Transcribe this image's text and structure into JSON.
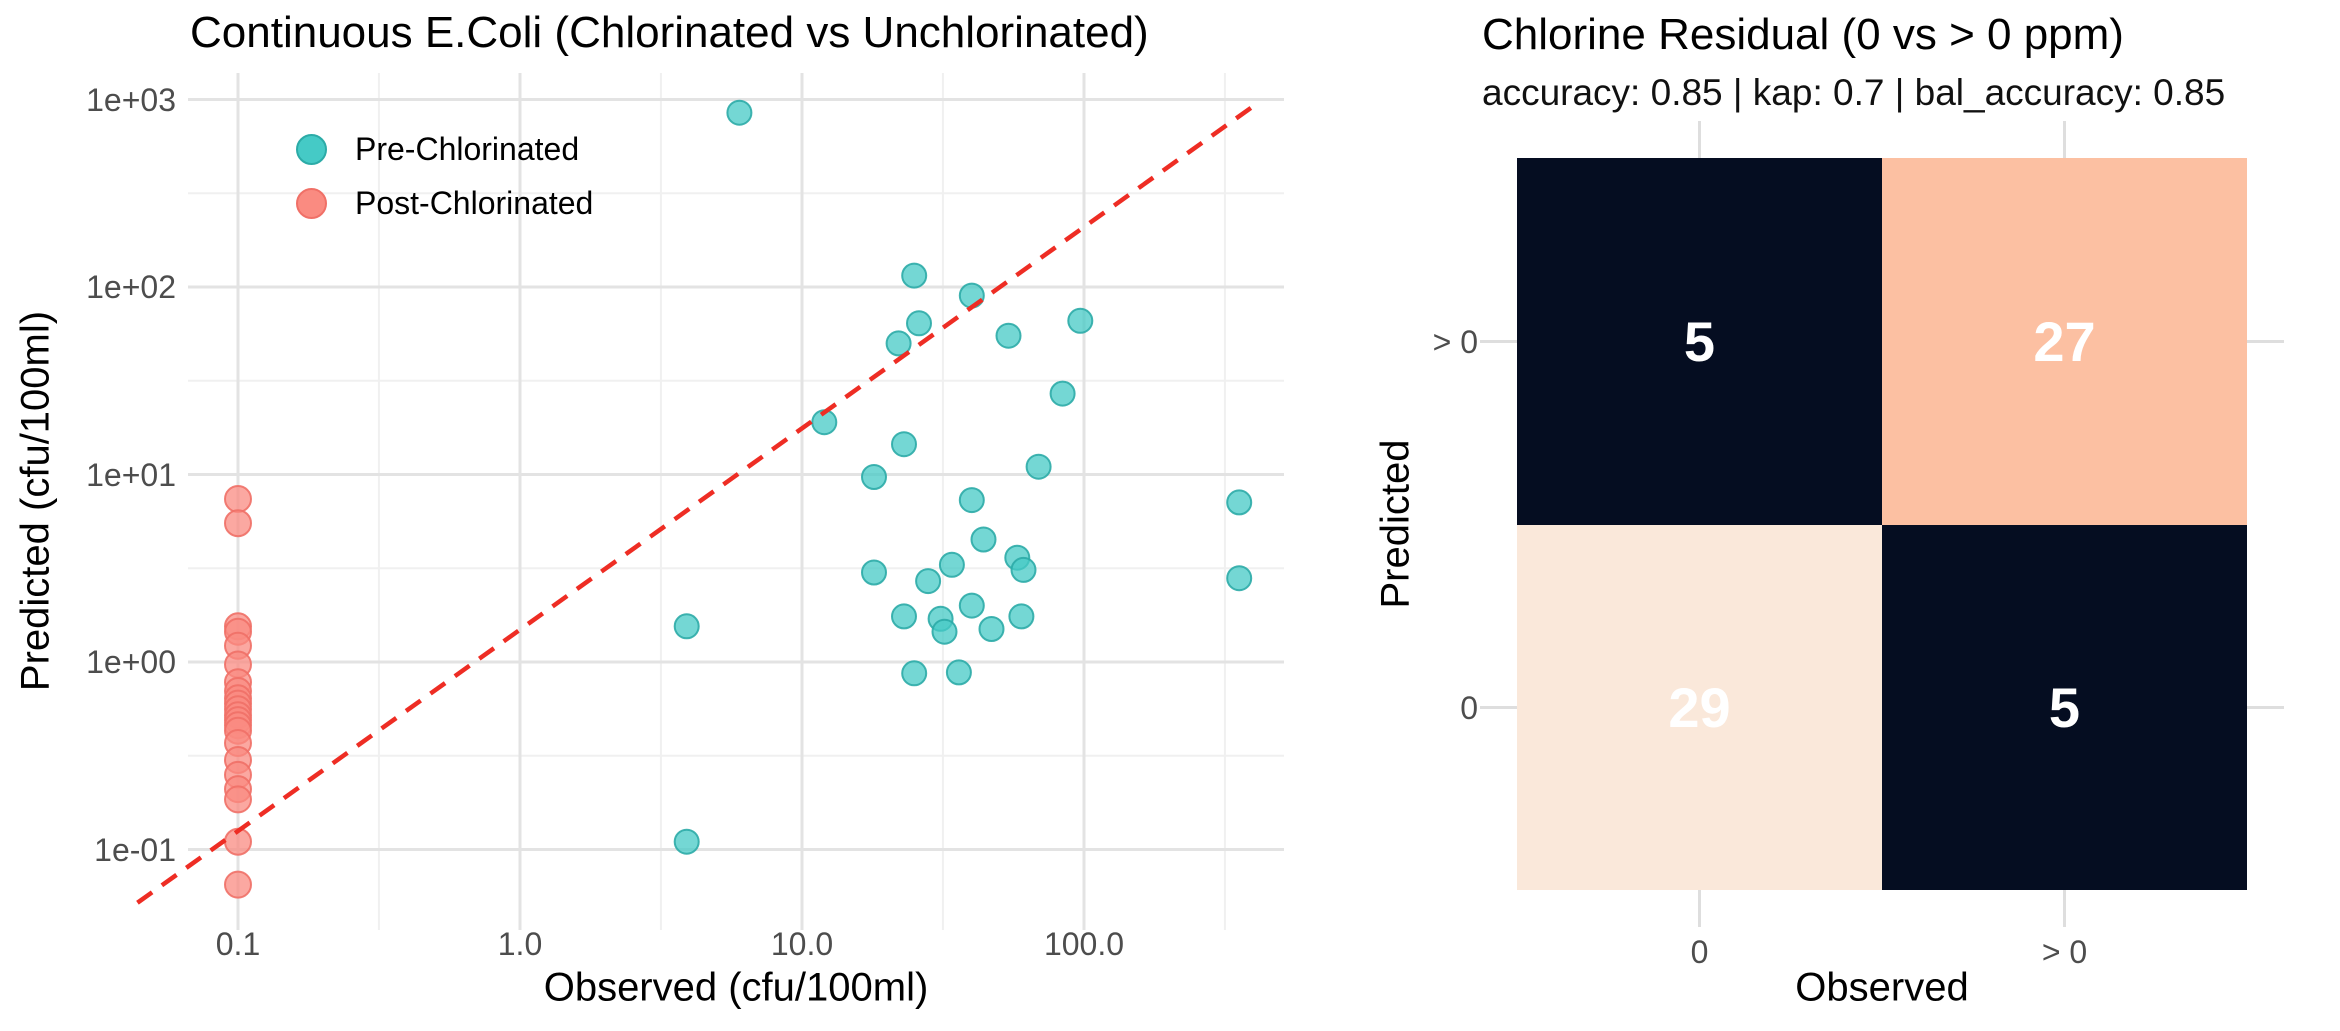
{
  "background": "#FFFFFF",
  "chart_data": [
    {
      "type": "scatter",
      "title": "Continuous E.Coli (Chlorinated vs Unchlorinated)",
      "xlabel": "Observed (cfu/100ml)",
      "ylabel": "Predicted (cfu/100ml)",
      "x_scale": "log10",
      "y_scale": "log10",
      "xlim": [
        0.066,
        510
      ],
      "ylim": [
        0.037,
        1385
      ],
      "grid": true,
      "legend_position": "inside-top-left",
      "x_ticks": [
        {
          "label": "0.1",
          "value": 0.1
        },
        {
          "label": "1.0",
          "value": 1
        },
        {
          "label": "10.0",
          "value": 10
        },
        {
          "label": "100.0",
          "value": 100
        }
      ],
      "y_ticks": [
        {
          "label": "1e-01",
          "value": 0.1
        },
        {
          "label": "1e+00",
          "value": 1
        },
        {
          "label": "1e+01",
          "value": 10
        },
        {
          "label": "1e+02",
          "value": 100
        },
        {
          "label": "1e+03",
          "value": 1000
        }
      ],
      "x_minor": [
        0.316,
        3.16,
        31.6,
        316
      ],
      "y_minor": [
        0.316,
        3.16,
        31.6,
        316
      ],
      "series": [
        {
          "name": "Pre-Chlorinated",
          "color": "#45CAC6",
          "stroke": "#2CABA7",
          "points": [
            [
              6,
              850
            ],
            [
              25,
              115
            ],
            [
              40,
              90
            ],
            [
              26,
              64
            ],
            [
              22,
              50
            ],
            [
              54,
              55
            ],
            [
              97,
              66
            ],
            [
              84,
              27
            ],
            [
              12,
              19
            ],
            [
              23,
              14.5
            ],
            [
              18,
              9.7
            ],
            [
              69,
              11
            ],
            [
              40,
              7.3
            ],
            [
              44,
              4.5
            ],
            [
              34,
              3.3
            ],
            [
              58,
              3.6
            ],
            [
              61,
              3.1
            ],
            [
              18,
              3.0
            ],
            [
              28,
              2.7
            ],
            [
              23,
              1.75
            ],
            [
              31,
              1.7
            ],
            [
              32,
              1.45
            ],
            [
              40,
              2.0
            ],
            [
              47,
              1.5
            ],
            [
              60,
              1.75
            ],
            [
              25,
              0.87
            ],
            [
              36,
              0.88
            ],
            [
              355,
              7.1
            ],
            [
              355,
              2.8
            ],
            [
              3.9,
              1.55
            ],
            [
              3.9,
              0.11
            ]
          ]
        },
        {
          "name": "Post-Chlorinated",
          "color": "#FA8B81",
          "stroke": "#F07067",
          "points": [
            [
              0.1,
              7.4
            ],
            [
              0.1,
              5.5
            ],
            [
              0.1,
              1.55
            ],
            [
              0.1,
              1.45
            ],
            [
              0.1,
              1.22
            ],
            [
              0.1,
              0.97
            ],
            [
              0.1,
              0.78
            ],
            [
              0.1,
              0.7
            ],
            [
              0.1,
              0.64
            ],
            [
              0.1,
              0.6
            ],
            [
              0.1,
              0.56
            ],
            [
              0.1,
              0.52
            ],
            [
              0.1,
              0.49
            ],
            [
              0.1,
              0.46
            ],
            [
              0.1,
              0.43
            ],
            [
              0.1,
              0.37
            ],
            [
              0.1,
              0.3
            ],
            [
              0.1,
              0.25
            ],
            [
              0.1,
              0.21
            ],
            [
              0.1,
              0.185
            ],
            [
              0.1,
              0.11
            ],
            [
              0.1,
              0.065
            ]
          ]
        }
      ],
      "reference_line": {
        "style": "dashed",
        "color": "#EE2D24",
        "from": [
          0.044,
          0.052
        ],
        "to": [
          410,
          950
        ]
      }
    },
    {
      "type": "heatmap",
      "title": "Chlorine Residual (0 vs > 0 ppm)",
      "subtitle": "accuracy: 0.85 | kap: 0.7 | bal_accuracy: 0.85",
      "xlabel": "Observed",
      "ylabel": "Predicted",
      "x_categories": [
        "0",
        "> 0"
      ],
      "y_categories": [
        "> 0",
        "0"
      ],
      "cells": [
        {
          "row": "> 0",
          "col": "0",
          "value": 5,
          "bg": "#050D21",
          "text_color": "#FFFFFF"
        },
        {
          "row": "> 0",
          "col": "> 0",
          "value": 27,
          "bg": "#FCC0A2",
          "text_color": "#FFFFFF"
        },
        {
          "row": "0",
          "col": "0",
          "value": 29,
          "bg": "#FAE8DA",
          "text_color": "#FFFFFF"
        },
        {
          "row": "0",
          "col": "> 0",
          "value": 5,
          "bg": "#050D21",
          "text_color": "#FFFFFF"
        }
      ]
    }
  ]
}
